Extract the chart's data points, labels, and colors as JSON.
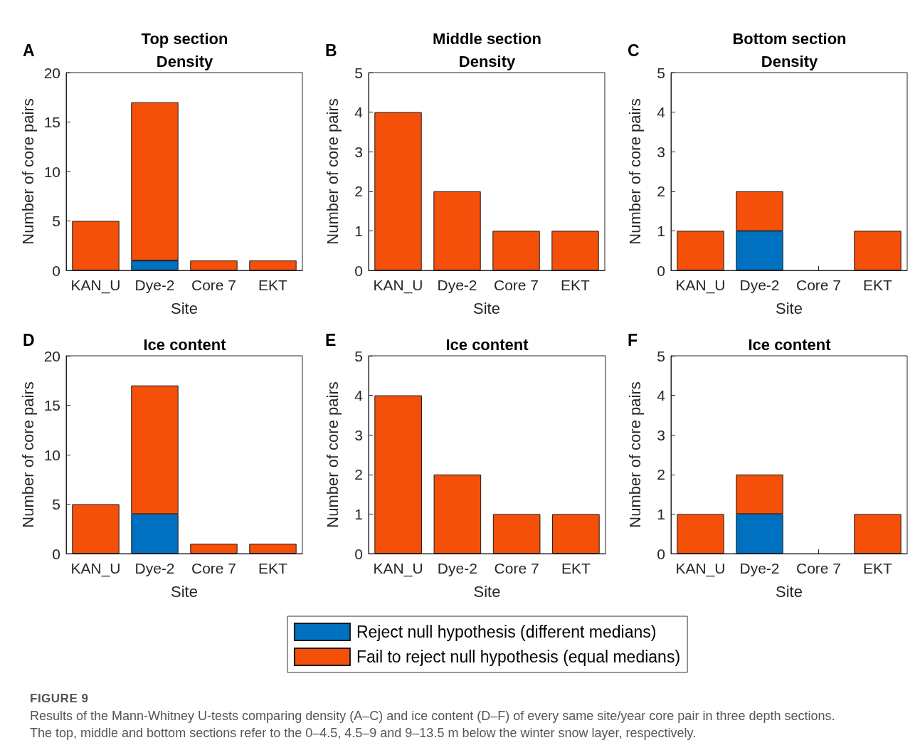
{
  "chart_data": [
    {
      "type": "bar",
      "title": "Top section\nDensity",
      "xlabel": "Site",
      "ylabel": "Number of core pairs",
      "annotations": [
        "A"
      ],
      "categories": [
        "KAN_U",
        "Dye-2",
        "Core 7",
        "EKT"
      ],
      "stacked": true,
      "series": [
        {
          "color": "#0070c0",
          "values": [
            0,
            1,
            0,
            0
          ]
        },
        {
          "color": "#f5500a",
          "values": [
            5,
            16,
            1,
            1
          ]
        }
      ],
      "ylim": [
        0,
        20
      ],
      "yticks": [
        0,
        5,
        10,
        15,
        20
      ]
    },
    {
      "type": "bar",
      "title": "Middle section\nDensity",
      "xlabel": "Site",
      "ylabel": "Number of core pairs",
      "annotations": [
        "B"
      ],
      "categories": [
        "KAN_U",
        "Dye-2",
        "Core 7",
        "EKT"
      ],
      "stacked": true,
      "series": [
        {
          "color": "#0070c0",
          "values": [
            0,
            0,
            0,
            0
          ]
        },
        {
          "color": "#f5500a",
          "values": [
            4,
            2,
            1,
            1
          ]
        }
      ],
      "ylim": [
        0,
        5
      ],
      "yticks": [
        0,
        1,
        2,
        3,
        4,
        5
      ]
    },
    {
      "type": "bar",
      "title": "Bottom section\nDensity",
      "xlabel": "Site",
      "ylabel": "Number of core pairs",
      "annotations": [
        "C"
      ],
      "categories": [
        "KAN_U",
        "Dye-2",
        "Core 7",
        "EKT"
      ],
      "stacked": true,
      "series": [
        {
          "color": "#0070c0",
          "values": [
            0,
            1,
            0,
            0
          ]
        },
        {
          "color": "#f5500a",
          "values": [
            1,
            1,
            0,
            1
          ]
        }
      ],
      "ylim": [
        0,
        5
      ],
      "yticks": [
        0,
        1,
        2,
        3,
        4,
        5
      ]
    },
    {
      "type": "bar",
      "title": "Ice content",
      "xlabel": "Site",
      "ylabel": "Number of core pairs",
      "annotations": [
        "D"
      ],
      "categories": [
        "KAN_U",
        "Dye-2",
        "Core 7",
        "EKT"
      ],
      "stacked": true,
      "series": [
        {
          "color": "#0070c0",
          "values": [
            0,
            4,
            0,
            0
          ]
        },
        {
          "color": "#f5500a",
          "values": [
            5,
            13,
            1,
            1
          ]
        }
      ],
      "ylim": [
        0,
        20
      ],
      "yticks": [
        0,
        5,
        10,
        15,
        20
      ]
    },
    {
      "type": "bar",
      "title": "Ice content",
      "xlabel": "Site",
      "ylabel": "Number of core pairs",
      "annotations": [
        "E"
      ],
      "categories": [
        "KAN_U",
        "Dye-2",
        "Core 7",
        "EKT"
      ],
      "stacked": true,
      "legend": "bottom",
      "series": [
        {
          "name": "Reject null hypothesis (different medians)",
          "color": "#0070c0",
          "values": [
            0,
            0,
            0,
            0
          ]
        },
        {
          "name": "Fail to reject null hypothesis (equal medians)",
          "color": "#f5500a",
          "values": [
            4,
            2,
            1,
            1
          ]
        }
      ],
      "ylim": [
        0,
        5
      ],
      "yticks": [
        0,
        1,
        2,
        3,
        4,
        5
      ]
    },
    {
      "type": "bar",
      "title": "Ice content",
      "xlabel": "Site",
      "ylabel": "Number of core pairs",
      "annotations": [
        "F",
        "FIGURE 9",
        "Results of the Mann-Whitney U-tests comparing density (A–C) and ice content (D–F) of every same site/year core pair in three depth sections. The top, middle and bottom sections refer to the 0–4.5, 4.5–9 and 9–13.5 m below the winter snow layer, respectively."
      ],
      "categories": [
        "KAN_U",
        "Dye-2",
        "Core 7",
        "EKT"
      ],
      "stacked": true,
      "series": [
        {
          "color": "#0070c0",
          "values": [
            0,
            1,
            0,
            0
          ]
        },
        {
          "color": "#f5500a",
          "values": [
            1,
            1,
            0,
            1
          ]
        }
      ],
      "ylim": [
        0,
        5
      ],
      "yticks": [
        0,
        1,
        2,
        3,
        4,
        5
      ]
    }
  ]
}
